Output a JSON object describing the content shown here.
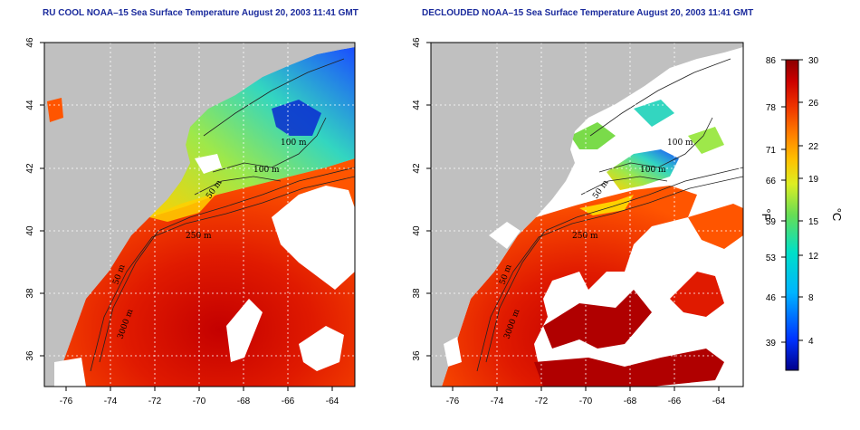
{
  "panels": [
    {
      "id": "left",
      "title": "RU COOL NOAA–15 Sea Surface Temperature August 20, 2003 11:41 GMT"
    },
    {
      "id": "right",
      "title": "DECLOUDED NOAA–15 Sea Surface Temperature August 20, 2003 11:41 GMT"
    }
  ],
  "axes": {
    "lon_ticks": [
      "-76",
      "-74",
      "-72",
      "-70",
      "-68",
      "-66",
      "-64"
    ],
    "lat_ticks": [
      "46",
      "44",
      "42",
      "40",
      "38",
      "36"
    ]
  },
  "contour_labels": [
    "100 m",
    "100 m",
    "50 m",
    "250 m",
    "250 m",
    "50 m",
    "3000 m"
  ],
  "colorbar": {
    "fahrenheit_ticks": [
      "86",
      "78",
      "71",
      "66",
      "59",
      "53",
      "46",
      "39"
    ],
    "celsius_ticks": [
      "30",
      "26",
      "22",
      "19",
      "15",
      "12",
      "8",
      "4"
    ],
    "unit_f": "°F",
    "unit_c": "°C",
    "colors": [
      "#00008b",
      "#0033ff",
      "#00b4ff",
      "#00e0c8",
      "#66dd55",
      "#ddee22",
      "#ffc000",
      "#ff7f00",
      "#ee3300",
      "#cc0000",
      "#8b0000"
    ]
  },
  "colors": {
    "land": "#c0c0c0",
    "cloud": "#ffffff",
    "title": "#1a2a9c",
    "grid": "#ffffff"
  }
}
